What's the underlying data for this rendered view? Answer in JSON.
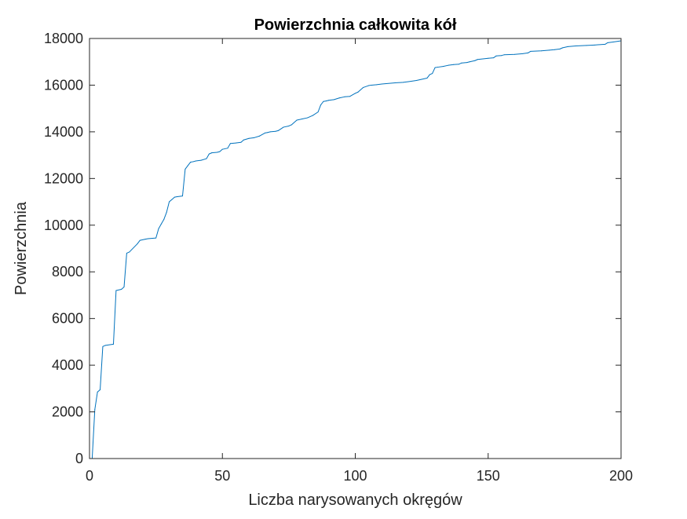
{
  "chart_data": {
    "type": "line",
    "title": "Powierzchnia całkowita kół",
    "xlabel": "Liczba narysowanych okręgów",
    "ylabel": "Powierzchnia",
    "xlim": [
      0,
      200
    ],
    "ylim": [
      0,
      18000
    ],
    "xticks": [
      0,
      50,
      100,
      150,
      200
    ],
    "yticks": [
      0,
      2000,
      4000,
      6000,
      8000,
      10000,
      12000,
      14000,
      16000,
      18000
    ],
    "xtick_labels": [
      "0",
      "50",
      "100",
      "150",
      "200"
    ],
    "ytick_labels": [
      "0",
      "2000",
      "4000",
      "6000",
      "8000",
      "10000",
      "12000",
      "14000",
      "16000",
      "18000"
    ],
    "grid": false,
    "series": [
      {
        "color": "#0072bd",
        "x": [
          1,
          2,
          3,
          4,
          5,
          6,
          9,
          10,
          12,
          13,
          14,
          15,
          18,
          19,
          21,
          22,
          25,
          26,
          27,
          28,
          29,
          30,
          31,
          32,
          33,
          35,
          36,
          37,
          38,
          39,
          40,
          42,
          44,
          45,
          46,
          48,
          49,
          50,
          52,
          53,
          55,
          57,
          58,
          60,
          62,
          64,
          66,
          67,
          68,
          70,
          71,
          73,
          75,
          76,
          78,
          80,
          82,
          84,
          86,
          87,
          88,
          89,
          90,
          92,
          94,
          96,
          98,
          100,
          101,
          103,
          105,
          106,
          108,
          110,
          115,
          118,
          120,
          123,
          125,
          127,
          128,
          129,
          130,
          131,
          133,
          135,
          137,
          139,
          140,
          142,
          143,
          145,
          146,
          150,
          152,
          153,
          155,
          156,
          160,
          163,
          165,
          166,
          170,
          173,
          175,
          177,
          178,
          180,
          183,
          187,
          190,
          194,
          195,
          197,
          200
        ],
        "y": [
          0,
          2100,
          2850,
          2950,
          4800,
          4850,
          4900,
          7200,
          7250,
          7350,
          8800,
          8850,
          9200,
          9350,
          9400,
          9420,
          9450,
          9850,
          10050,
          10250,
          10550,
          11000,
          11100,
          11200,
          11220,
          11250,
          12400,
          12550,
          12700,
          12720,
          12750,
          12780,
          12850,
          13050,
          13100,
          13120,
          13150,
          13250,
          13300,
          13500,
          13520,
          13550,
          13650,
          13720,
          13750,
          13820,
          13950,
          13970,
          14000,
          14020,
          14050,
          14200,
          14250,
          14300,
          14500,
          14550,
          14600,
          14700,
          14850,
          15150,
          15300,
          15320,
          15350,
          15380,
          15450,
          15500,
          15520,
          15650,
          15700,
          15900,
          15980,
          16000,
          16020,
          16050,
          16100,
          16120,
          16150,
          16200,
          16250,
          16300,
          16450,
          16500,
          16750,
          16770,
          16800,
          16850,
          16880,
          16900,
          16950,
          16970,
          17000,
          17050,
          17100,
          17150,
          17170,
          17250,
          17270,
          17300,
          17320,
          17350,
          17380,
          17450,
          17470,
          17500,
          17520,
          17550,
          17600,
          17650,
          17680,
          17700,
          17720,
          17750,
          17820,
          17850,
          17900
        ]
      }
    ]
  }
}
